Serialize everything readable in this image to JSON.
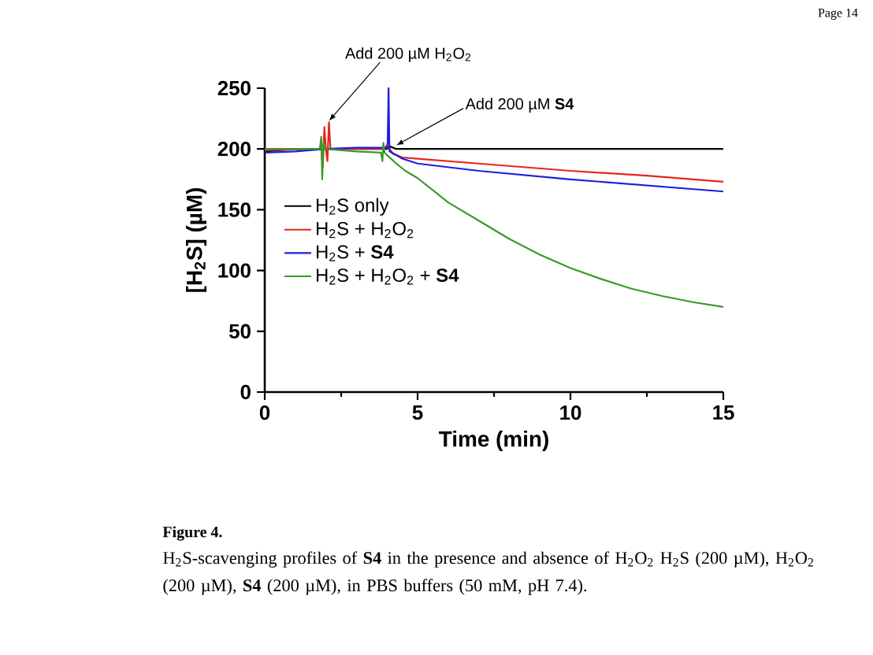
{
  "chart_data": {
    "type": "line",
    "xlabel": "Time (min)",
    "ylabel": "[H$_{2}$S] (µM)",
    "xlim": [
      0,
      15
    ],
    "ylim": [
      0,
      250
    ],
    "xticks": [
      0,
      5,
      10,
      15
    ],
    "yticks": [
      0,
      50,
      100,
      150,
      200,
      250
    ],
    "legend": "left",
    "series": [
      {
        "name": "H$_{2}$S only",
        "color": "#000000",
        "x": [
          0,
          0.5,
          1,
          4,
          4.1,
          4.3,
          15
        ],
        "values": [
          198,
          199,
          200,
          200,
          202,
          200,
          200
        ]
      },
      {
        "name": "H$_{2}$S + H$_{2}$O$_{2}$",
        "color": "#e8251f",
        "x": [
          0,
          1.85,
          1.9,
          1.95,
          2.0,
          2.05,
          2.1,
          2.15,
          3.9,
          4.0,
          4.2,
          4.5,
          5,
          7,
          10,
          12.5,
          15
        ],
        "values": [
          199,
          200,
          185,
          218,
          200,
          190,
          222,
          200,
          200,
          203,
          196,
          193,
          192,
          188,
          182,
          178,
          173
        ]
      },
      {
        "name": "H$_{2}$S + **S4**",
        "color": "#1f1fe0",
        "x": [
          0,
          1,
          2,
          3,
          4,
          4.02,
          4.05,
          4.08,
          4.3,
          4.5,
          5,
          7,
          10,
          12.5,
          15
        ],
        "values": [
          197,
          198,
          200,
          201,
          201,
          205,
          250,
          198,
          195,
          192,
          188,
          182,
          175,
          170,
          165
        ]
      },
      {
        "name": "H$_{2}$S + H$_{2}$O$_{2}$ + **S4**",
        "color": "#3a9a2a",
        "x": [
          0,
          1.8,
          1.85,
          1.88,
          1.92,
          1.95,
          3,
          3.8,
          3.85,
          3.88,
          3.92,
          4,
          4.3,
          4.6,
          5,
          5.5,
          6,
          7,
          8,
          9,
          10,
          11,
          12,
          13,
          14,
          15
        ],
        "values": [
          200,
          200,
          210,
          175,
          205,
          200,
          198,
          197,
          190,
          205,
          197,
          195,
          188,
          182,
          176,
          166,
          156,
          141,
          126,
          113,
          102,
          93,
          85,
          79,
          74,
          70
        ]
      }
    ],
    "annotations": [
      "Page 14",
      {
        "text": "Add 200 µM H$_{2}$O$_{2}$",
        "x": 2.1,
        "y": 222
      },
      {
        "text": "Add 200 µM **S4**",
        "x": 4.3,
        "y": 202
      },
      "Figure 4.",
      "H$_{2}$S-scavenging profiles of **S4** in the presence and absence of H$_{2}$O$_{2}$ H$_{2}$S (200 µM), H$_{2}$O$_{2}$ (200 µM), **S4** (200 µM), in PBS buffers (50 mM, pH 7.4)."
    ]
  }
}
